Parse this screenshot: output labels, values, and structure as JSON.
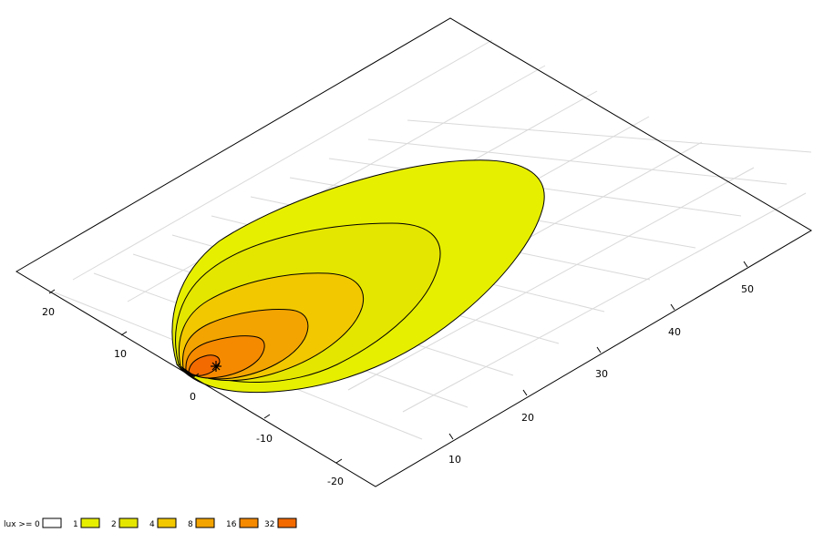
{
  "chart_data": {
    "type": "area",
    "title": "",
    "xlabel": "",
    "ylabel": "",
    "x_axis": {
      "ticks": [
        10,
        20,
        30,
        40,
        50
      ],
      "tick_labels": [
        "10",
        "20",
        "30",
        "40",
        "50"
      ]
    },
    "y_axis": {
      "ticks": [
        -20,
        -10,
        0,
        10,
        20
      ],
      "tick_labels": [
        "-20",
        "-10",
        "0",
        "10",
        "20"
      ]
    },
    "grid": true,
    "levels": [
      0,
      1,
      2,
      4,
      8,
      16,
      32
    ],
    "level_colors": [
      "#ffffff",
      "#e7ef00",
      "#e5e600",
      "#f2c800",
      "#f3a400",
      "#f58900",
      "#f26a00"
    ],
    "luminaire_marker": "asterisk",
    "legend": {
      "label": "lux >=",
      "placement": "bottom-left",
      "entries": [
        "0",
        "1",
        "2",
        "4",
        "8",
        "16",
        "32"
      ]
    }
  }
}
